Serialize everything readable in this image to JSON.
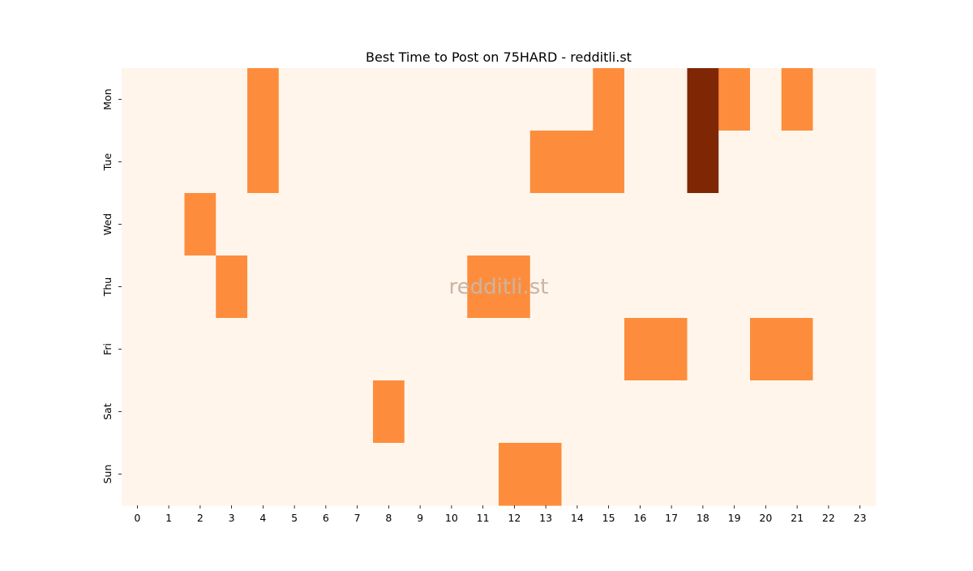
{
  "chart_data": {
    "type": "heatmap",
    "title": "Best Time to Post on 75HARD - redditli.st",
    "watermark": "redditli.st",
    "x_categories": [
      "0",
      "1",
      "2",
      "3",
      "4",
      "5",
      "6",
      "7",
      "8",
      "9",
      "10",
      "11",
      "12",
      "13",
      "14",
      "15",
      "16",
      "17",
      "18",
      "19",
      "20",
      "21",
      "22",
      "23"
    ],
    "y_categories": [
      "Mon",
      "Tue",
      "Wed",
      "Thu",
      "Fri",
      "Sat",
      "Sun"
    ],
    "values": [
      [
        0,
        0,
        0,
        0,
        1,
        0,
        0,
        0,
        0,
        0,
        0,
        0,
        0,
        0,
        0,
        1,
        0,
        0,
        2,
        1,
        0,
        1,
        0,
        0
      ],
      [
        0,
        0,
        0,
        0,
        1,
        0,
        0,
        0,
        0,
        0,
        0,
        0,
        0,
        1,
        1,
        1,
        0,
        0,
        2,
        0,
        0,
        0,
        0,
        0
      ],
      [
        0,
        0,
        1,
        0,
        0,
        0,
        0,
        0,
        0,
        0,
        0,
        0,
        0,
        0,
        0,
        0,
        0,
        0,
        0,
        0,
        0,
        0,
        0,
        0
      ],
      [
        0,
        0,
        0,
        1,
        0,
        0,
        0,
        0,
        0,
        0,
        0,
        1,
        1,
        0,
        0,
        0,
        0,
        0,
        0,
        0,
        0,
        0,
        0,
        0
      ],
      [
        0,
        0,
        0,
        0,
        0,
        0,
        0,
        0,
        0,
        0,
        0,
        0,
        0,
        0,
        0,
        0,
        1,
        1,
        0,
        0,
        1,
        1,
        0,
        0
      ],
      [
        0,
        0,
        0,
        0,
        0,
        0,
        0,
        0,
        1,
        0,
        0,
        0,
        0,
        0,
        0,
        0,
        0,
        0,
        0,
        0,
        0,
        0,
        0,
        0
      ],
      [
        0,
        0,
        0,
        0,
        0,
        0,
        0,
        0,
        0,
        0,
        0,
        0,
        1,
        1,
        0,
        0,
        0,
        0,
        0,
        0,
        0,
        0,
        0,
        0
      ]
    ],
    "colormap": {
      "0": "#fff5eb",
      "1": "#fd8d3c",
      "2": "#7f2704"
    },
    "xlabel": "",
    "ylabel": ""
  }
}
